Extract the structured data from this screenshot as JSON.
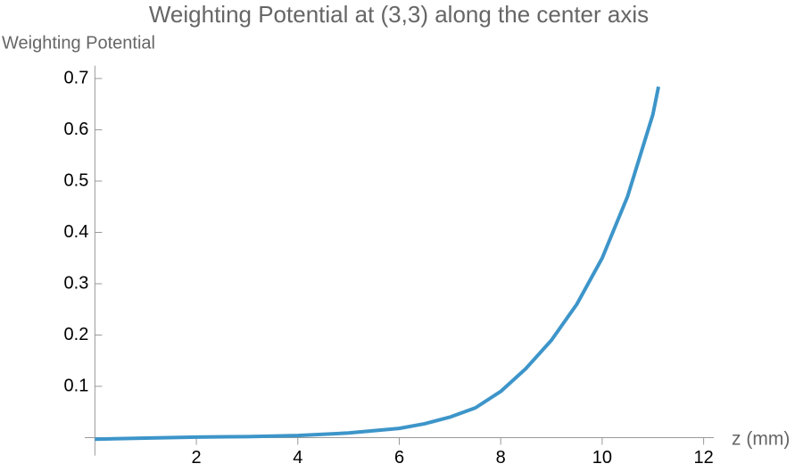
{
  "chart_data": {
    "type": "line",
    "title": "Weighting Potential at (3,3) along the center axis",
    "x_label": "z (mm)",
    "y_label": "Weighting Potential",
    "series": [
      {
        "color": "#3d95c9",
        "x": [
          0,
          1,
          2,
          3,
          4,
          5,
          6,
          6.5,
          7,
          7.5,
          8,
          8.5,
          9,
          9.5,
          10,
          10.5,
          11,
          11.11
        ],
        "values": [
          -0.003,
          -0.001,
          0.001,
          0.002,
          0.004,
          0.009,
          0.018,
          0.027,
          0.04,
          0.058,
          0.09,
          0.135,
          0.19,
          0.26,
          0.35,
          0.47,
          0.63,
          0.684
        ]
      }
    ],
    "xlim": [
      -0.2,
      12.2
    ],
    "ylim": [
      -0.035,
      0.725
    ],
    "xticks": [
      2,
      4,
      6,
      8,
      10,
      12
    ],
    "yticks": [
      0.1,
      0.2,
      0.3,
      0.4,
      0.5,
      0.6,
      0.7
    ]
  }
}
